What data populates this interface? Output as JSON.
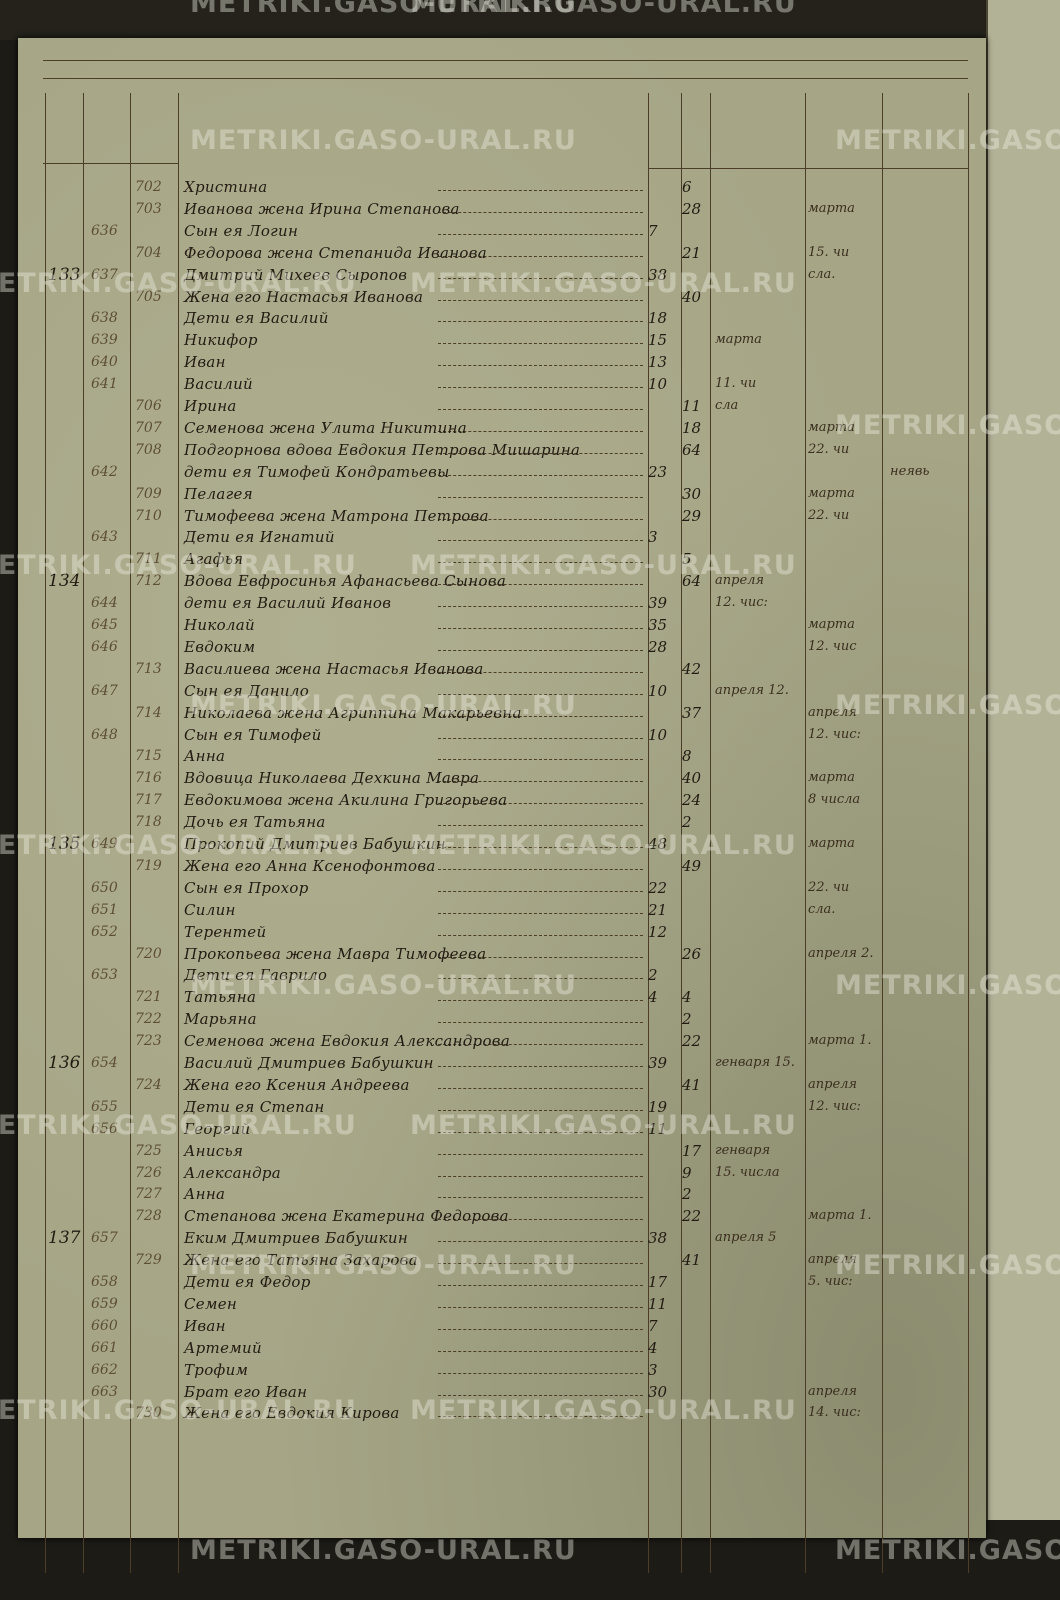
{
  "watermark": "METRIKI.GASO-URAL.RU",
  "colors": {
    "paper": "#a6a687",
    "ink": "#231b12",
    "faded_ink": "#5e4e37",
    "background": "#1d1b16"
  },
  "entries": [
    {
      "fn": "702",
      "name": "Христина",
      "fa": "6"
    },
    {
      "fn": "703",
      "name": "Иванова жена Ирина Степанова",
      "fa": "28",
      "n2": "марта"
    },
    {
      "mn": "636",
      "name": "Сын ея Логин",
      "ma": "7"
    },
    {
      "fn": "704",
      "name": "Федорова жена Степанида Иванова",
      "fa": "21",
      "n2": "15. чи"
    },
    {
      "hh": "133",
      "mn": "637",
      "name": "Дмитрий Михеев Сыропов",
      "ma": "38",
      "n2": "сла."
    },
    {
      "fn": "705",
      "name": "Жена его Настасья Иванова",
      "fa": "40"
    },
    {
      "mn": "638",
      "name": "Дети ея Василий",
      "ma": "18"
    },
    {
      "mn": "639",
      "name": "Никифор",
      "ma": "15",
      "n1": "марта"
    },
    {
      "mn": "640",
      "name": "Иван",
      "ma": "13"
    },
    {
      "mn": "641",
      "name": "Василий",
      "ma": "10",
      "n1": "11. чи"
    },
    {
      "fn": "706",
      "name": "Ирина",
      "fa": "11",
      "n1": "сла"
    },
    {
      "fn": "707",
      "name": "Семенова жена Улита Никитина",
      "fa": "18",
      "n2": "марта"
    },
    {
      "fn": "708",
      "name": "Подгорнова вдова Евдокия Петрова Мишарина",
      "fa": "64",
      "n2": "22. чи"
    },
    {
      "mn": "642",
      "name": "дети ея Тимофей Кондратьевы",
      "ma": "23",
      "n3": "неявь"
    },
    {
      "fn": "709",
      "name": "Пелагея",
      "fa": "30",
      "n2": "марта"
    },
    {
      "fn": "710",
      "name": "Тимофеева жена Матрона Петрова",
      "fa": "29",
      "n2": "22. чи"
    },
    {
      "mn": "643",
      "name": "Дети ея Игнатий",
      "ma": "3"
    },
    {
      "fn": "711",
      "name": "Агафья",
      "fa": "5"
    },
    {
      "hh": "134",
      "fn": "712",
      "name": "Вдова Евфросинья Афанасьева Сынова",
      "fa": "64",
      "n1": "апреля"
    },
    {
      "mn": "644",
      "name": "дети ея Василий Иванов",
      "ma": "39",
      "n1": "12. чис:"
    },
    {
      "mn": "645",
      "name": "Николай",
      "ma": "35",
      "n2": "марта"
    },
    {
      "mn": "646",
      "name": "Евдоким",
      "ma": "28",
      "n2": "12. чис"
    },
    {
      "fn": "713",
      "name": "Василиева жена Настасья Иванова",
      "fa": "42"
    },
    {
      "mn": "647",
      "name": "Сын ея Данило",
      "ma": "10",
      "n1": "апреля 12."
    },
    {
      "fn": "714",
      "name": "Николаева жена Агриппина Макарьевна",
      "fa": "37",
      "n2": "апреля"
    },
    {
      "mn": "648",
      "name": "Сын ея Тимофей",
      "ma": "10",
      "n2": "12. чис:"
    },
    {
      "fn": "715",
      "name": "Анна",
      "fa": "8"
    },
    {
      "fn": "716",
      "name": "Вдовица Николаева Дехкина Мавра",
      "fa": "40",
      "n2": "марта"
    },
    {
      "fn": "717",
      "name": "Евдокимова жена Акилина Григорьева",
      "fa": "24",
      "n2": "8 числа"
    },
    {
      "fn": "718",
      "name": "Дочь ея Татьяна",
      "fa": "2"
    },
    {
      "hh": "135",
      "mn": "649",
      "name": "Прокопий Дмитриев Бабушкин",
      "ma": "48",
      "n2": "марта"
    },
    {
      "fn": "719",
      "name": "Жена его Анна Ксенофонтова",
      "fa": "49"
    },
    {
      "mn": "650",
      "name": "Сын ея Прохор",
      "ma": "22",
      "n2": "22. чи"
    },
    {
      "mn": "651",
      "name": "Силин",
      "ma": "21",
      "n2": "сла."
    },
    {
      "mn": "652",
      "name": "Терентей",
      "ma": "12"
    },
    {
      "fn": "720",
      "name": "Прокопьева жена Мавра Тимофеева",
      "fa": "26",
      "n2": "апреля 2."
    },
    {
      "mn": "653",
      "name": "Дети ея Гаврило",
      "ma": "2"
    },
    {
      "fn": "721",
      "name": "Татьяна",
      "ma": "4",
      "fa": "4"
    },
    {
      "fn": "722",
      "name": "Марьяна",
      "fa": "2"
    },
    {
      "fn": "723",
      "name": "Семенова жена Евдокия Александрова",
      "fa": "22",
      "n2": "марта 1."
    },
    {
      "hh": "136",
      "mn": "654",
      "name": "Василий Дмитриев Бабушкин",
      "ma": "39",
      "n1": "генваря 15."
    },
    {
      "fn": "724",
      "name": "Жена его Ксения Андреева",
      "fa": "41",
      "n2": "апреля"
    },
    {
      "mn": "655",
      "name": "Дети ея Степан",
      "ma": "19",
      "n2": "12. чис:"
    },
    {
      "mn": "656",
      "name": "Георгий",
      "ma": "11"
    },
    {
      "fn": "725",
      "name": "Анисья",
      "fa": "17",
      "n1": "генваря"
    },
    {
      "fn": "726",
      "name": "Александра",
      "fa": "9",
      "n1": "15. числа"
    },
    {
      "fn": "727",
      "name": "Анна",
      "fa": "2"
    },
    {
      "fn": "728",
      "name": "Степанова жена Екатерина Федорова",
      "fa": "22",
      "n2": "марта 1."
    },
    {
      "hh": "137",
      "mn": "657",
      "name": "Еким Дмитриев Бабушкин",
      "ma": "38",
      "n1": "апреля 5"
    },
    {
      "fn": "729",
      "name": "Жена его Татьяна Захарова",
      "fa": "41",
      "n2": "апреля"
    },
    {
      "mn": "658",
      "name": "Дети ея Федор",
      "ma": "17",
      "n2": "5. чис:"
    },
    {
      "mn": "659",
      "name": "Семен",
      "ma": "11"
    },
    {
      "mn": "660",
      "name": "Иван",
      "ma": "7"
    },
    {
      "mn": "661",
      "name": "Артемий",
      "ma": "4"
    },
    {
      "mn": "662",
      "name": "Трофим",
      "ma": "3"
    },
    {
      "mn": "663",
      "name": "Брат его Иван",
      "ma": "30",
      "n2": "апреля"
    },
    {
      "fn": "730",
      "name": "Жена его Евдокия Кирова",
      "n2": "14. чис:"
    }
  ]
}
